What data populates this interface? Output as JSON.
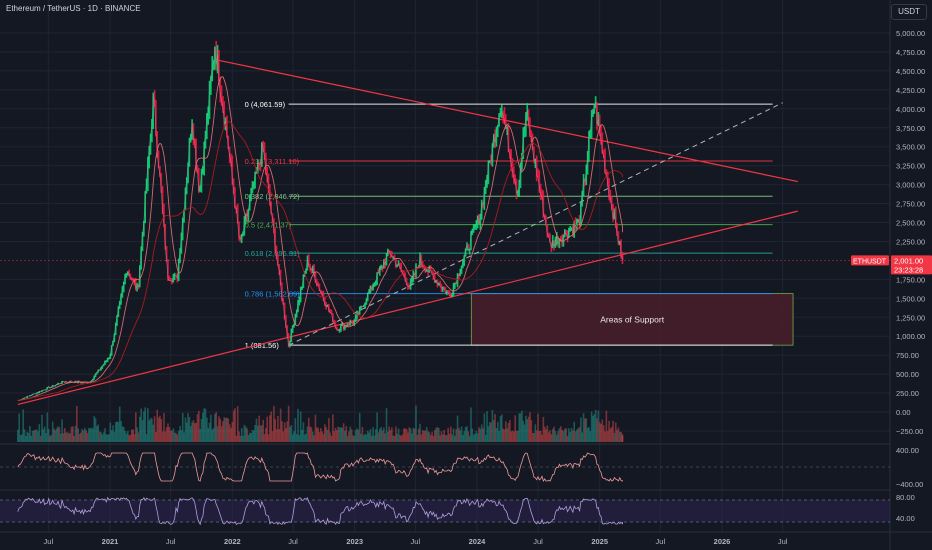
{
  "header": {
    "symbol_title": "Ethereum / TetherUS · 1D · BINANCE",
    "currency_button": "USDT"
  },
  "colors": {
    "background": "#141823",
    "grid": "#1f2433",
    "axis_text": "#b2b5be",
    "trendline": "#f23645",
    "fib_level": "#ffffff",
    "fib_0236": "#f23645",
    "fib_0382": "#81c784",
    "fib_05": "#4caf50",
    "fib_0618": "#26a69a",
    "fib_0786": "#2196f3",
    "support_zone_fill": "#4a1e2c",
    "support_zone_border": "#8bc34a",
    "price_tag": "#f23645",
    "volume_up": "#26a69a",
    "volume_down": "#ef5350",
    "macd_line": "#ef9a9a",
    "rsi_line": "#b39ddb",
    "rsi_band": "#2a2450"
  },
  "chart_data": {
    "type": "candlestick",
    "title": "Ethereum / TetherUS · 1D · BINANCE",
    "y_unit": "USDT",
    "x_range": [
      "2020-04-01",
      "2026-09-01"
    ],
    "y_range": [
      -300,
      5300
    ],
    "x_tick_labels": [
      {
        "date": "2020-07-01",
        "label": "Jul"
      },
      {
        "date": "2021-01-01",
        "label": "2021"
      },
      {
        "date": "2021-07-01",
        "label": "Jul"
      },
      {
        "date": "2022-01-01",
        "label": "2022"
      },
      {
        "date": "2022-07-01",
        "label": "Jul"
      },
      {
        "date": "2023-01-01",
        "label": "2023"
      },
      {
        "date": "2023-07-01",
        "label": "Jul"
      },
      {
        "date": "2024-01-01",
        "label": "2024"
      },
      {
        "date": "2024-07-01",
        "label": "Jul"
      },
      {
        "date": "2025-01-01",
        "label": "2025"
      },
      {
        "date": "2025-07-01",
        "label": "Jul"
      },
      {
        "date": "2026-01-01",
        "label": "2026"
      },
      {
        "date": "2026-07-01",
        "label": "Jul"
      }
    ],
    "y_tick_labels": [
      {
        "value": 5000,
        "label": "5,000.00"
      },
      {
        "value": 4750,
        "label": "4,750.00"
      },
      {
        "value": 4500,
        "label": "4,500.00"
      },
      {
        "value": 4250,
        "label": "4,250.00"
      },
      {
        "value": 4000,
        "label": "4,000.00"
      },
      {
        "value": 3750,
        "label": "3,750.00"
      },
      {
        "value": 3500,
        "label": "3,500.00"
      },
      {
        "value": 3250,
        "label": "3,250.00"
      },
      {
        "value": 3000,
        "label": "3,000.00"
      },
      {
        "value": 2750,
        "label": "2,750.00"
      },
      {
        "value": 2500,
        "label": "2,500.00"
      },
      {
        "value": 2250,
        "label": "2,250.00"
      },
      {
        "value": 1750,
        "label": "1,750.00"
      },
      {
        "value": 1500,
        "label": "1,500.00"
      },
      {
        "value": 1250,
        "label": "1,250.00"
      },
      {
        "value": 1000,
        "label": "1,000.00"
      },
      {
        "value": 750,
        "label": "750.00"
      },
      {
        "value": 500,
        "label": "500.00"
      },
      {
        "value": 250,
        "label": "250.00"
      },
      {
        "value": 0,
        "label": "0.00"
      },
      {
        "value": -250,
        "label": "−250.00"
      }
    ],
    "macd_tick_labels": [
      {
        "value": 400,
        "label": "400.00"
      },
      {
        "value": -400,
        "label": "−400.00"
      }
    ],
    "rsi_tick_labels": [
      {
        "value": 80,
        "label": "80.00"
      },
      {
        "value": 40,
        "label": "40.00"
      }
    ],
    "price_path": [
      {
        "date": "2020-04-01",
        "price": 150
      },
      {
        "date": "2020-08-15",
        "price": 400
      },
      {
        "date": "2020-11-01",
        "price": 390
      },
      {
        "date": "2021-01-01",
        "price": 740
      },
      {
        "date": "2021-02-20",
        "price": 1900
      },
      {
        "date": "2021-03-25",
        "price": 1600
      },
      {
        "date": "2021-05-11",
        "price": 4150
      },
      {
        "date": "2021-06-22",
        "price": 1800
      },
      {
        "date": "2021-07-20",
        "price": 1750
      },
      {
        "date": "2021-09-03",
        "price": 3900
      },
      {
        "date": "2021-09-25",
        "price": 2900
      },
      {
        "date": "2021-11-10",
        "price": 4860
      },
      {
        "date": "2021-12-15",
        "price": 3700
      },
      {
        "date": "2022-01-24",
        "price": 2200
      },
      {
        "date": "2022-04-02",
        "price": 3500
      },
      {
        "date": "2022-05-15",
        "price": 2000
      },
      {
        "date": "2022-06-18",
        "price": 880
      },
      {
        "date": "2022-08-14",
        "price": 2000
      },
      {
        "date": "2022-11-09",
        "price": 1100
      },
      {
        "date": "2023-01-01",
        "price": 1200
      },
      {
        "date": "2023-04-16",
        "price": 2120
      },
      {
        "date": "2023-06-15",
        "price": 1650
      },
      {
        "date": "2023-07-14",
        "price": 2000
      },
      {
        "date": "2023-10-12",
        "price": 1530
      },
      {
        "date": "2024-01-10",
        "price": 2600
      },
      {
        "date": "2024-03-12",
        "price": 4090
      },
      {
        "date": "2024-05-01",
        "price": 2900
      },
      {
        "date": "2024-05-27",
        "price": 3950
      },
      {
        "date": "2024-08-05",
        "price": 2200
      },
      {
        "date": "2024-11-01",
        "price": 2500
      },
      {
        "date": "2024-12-16",
        "price": 4100
      },
      {
        "date": "2025-02-03",
        "price": 2800
      },
      {
        "date": "2025-03-10",
        "price": 2001
      }
    ],
    "fibonacci_levels": [
      {
        "ratio": "0",
        "label": "0 (4,061.59)",
        "price": 4061.59,
        "color": "#ffffff"
      },
      {
        "ratio": "0.236",
        "label": "0.236 (3,311.10)",
        "price": 3311.1,
        "color": "#f23645"
      },
      {
        "ratio": "0.382",
        "label": "0.382 (2,846.72)",
        "price": 2846.72,
        "color": "#81c784"
      },
      {
        "ratio": "0.5",
        "label": "0.5 (2,471.37)",
        "price": 2471.37,
        "color": "#4caf50"
      },
      {
        "ratio": "0.618",
        "label": "0.618 (2,096.31)",
        "price": 2096.31,
        "color": "#26a69a"
      },
      {
        "ratio": "0.786",
        "label": "0.786 (1,562.09)",
        "price": 1562.09,
        "color": "#2196f3"
      },
      {
        "ratio": "1",
        "label": "1 (881.56)",
        "price": 881.56,
        "color": "#ffffff"
      }
    ],
    "fib_range": {
      "start": "2022-06-18",
      "end": "2026-06-01"
    },
    "trendlines": [
      {
        "name": "descending-resistance",
        "from": {
          "date": "2021-11-10",
          "price": 4650
        },
        "to": {
          "date": "2026-08-15",
          "price": 3040
        },
        "color": "#f23645"
      },
      {
        "name": "ascending-support",
        "from": {
          "date": "2020-04-01",
          "price": 100
        },
        "to": {
          "date": "2026-08-15",
          "price": 2650
        },
        "color": "#f23645"
      },
      {
        "name": "dashed-projection",
        "from": {
          "date": "2022-06-18",
          "price": 880
        },
        "to": {
          "date": "2026-07-01",
          "price": 4080
        },
        "color": "#b2b5be",
        "dashed": true
      }
    ],
    "support_zone": {
      "label": "Areas of Support",
      "from": "2023-12-15",
      "to": "2026-08-01",
      "price_low": 881.56,
      "price_high": 1562.09
    },
    "last_price": {
      "symbol": "ETHUSDT",
      "price_label": "2,001.00",
      "countdown": "23:23:28",
      "price": 2001
    }
  }
}
